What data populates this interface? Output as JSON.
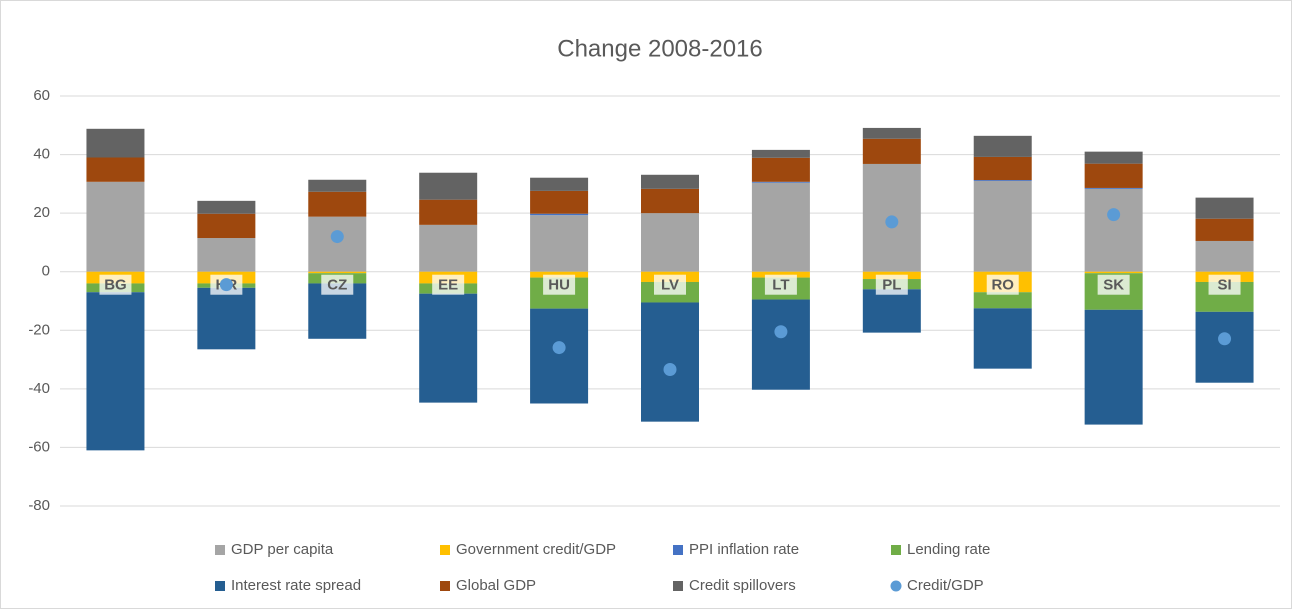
{
  "chart_data": {
    "type": "bar",
    "stacked": true,
    "title": "Change 2008-2016",
    "categories": [
      "BG",
      "HR",
      "CZ",
      "EE",
      "HU",
      "LV",
      "LT",
      "PL",
      "RO",
      "SK",
      "SI"
    ],
    "series": [
      {
        "name": "GDP per capita",
        "color": "#a5a5a5",
        "values": [
          30.7,
          11.5,
          18.8,
          16,
          19.3,
          20,
          30.4,
          36.8,
          31,
          28.3,
          10.5
        ]
      },
      {
        "name": "Government credit/GDP",
        "color": "#ffc000",
        "values": [
          -4,
          -4,
          -0.5,
          -4,
          -2,
          -3.5,
          -2,
          -2.5,
          -7,
          -0.5,
          -3.5
        ]
      },
      {
        "name": "PPI inflation rate",
        "color": "#4472c4",
        "values": [
          0,
          0,
          0,
          0,
          0.5,
          0,
          0.3,
          0,
          0.3,
          0.3,
          0
        ]
      },
      {
        "name": "Lending rate",
        "color": "#70ad47",
        "values": [
          -3,
          -1.5,
          -3.5,
          -3.5,
          -10.6,
          -7,
          -7.5,
          -3.5,
          -5.5,
          -12.5,
          -10.2
        ]
      },
      {
        "name": "Interest rate spread",
        "color": "#255e91",
        "values": [
          -54,
          -21,
          -18.9,
          -37.2,
          -32.4,
          -40.7,
          -30.8,
          -14.8,
          -20.6,
          -39.2,
          -24.2
        ]
      },
      {
        "name": "Global GDP",
        "color": "#9e480e",
        "values": [
          8.3,
          8.3,
          8.5,
          8.6,
          7.8,
          8.3,
          8.2,
          8.6,
          7.9,
          8.3,
          7.6
        ]
      },
      {
        "name": "Credit spillovers",
        "color": "#636363",
        "values": [
          9.8,
          4.4,
          4.1,
          9.2,
          4.5,
          4.8,
          2.7,
          3.7,
          7.2,
          4.1,
          7.2
        ]
      },
      {
        "name": "Credit/GDP",
        "color": "#5b9bd5",
        "mark": "scatter",
        "values": [
          null,
          -4.4,
          12,
          null,
          -25.9,
          -33.4,
          -20.5,
          17,
          null,
          19.5,
          -22.9
        ]
      }
    ],
    "ylim": [
      -80,
      60
    ],
    "yticks": [
      -80,
      -60,
      -40,
      -20,
      0,
      20,
      40,
      60
    ],
    "grid": true,
    "legend": "bottom"
  }
}
